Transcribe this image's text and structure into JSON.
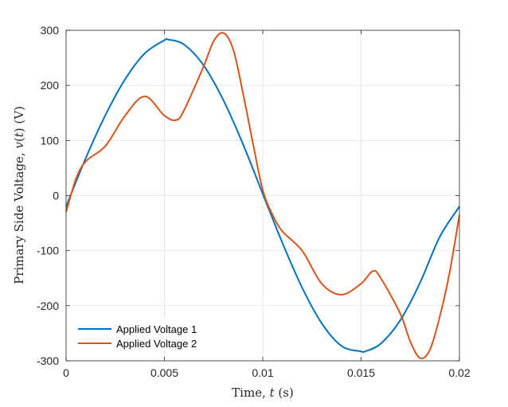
{
  "chart_data": {
    "type": "line",
    "xlabel": "Time, t (s)",
    "xlabel_parts": [
      "Time, ",
      "t",
      " (s)"
    ],
    "ylabel": "Primary Side Voltage, v(t) (V)",
    "ylabel_parts": [
      "Primary Side Voltage, ",
      "v",
      "(",
      "t",
      ") (V)"
    ],
    "xlim": [
      0,
      0.02
    ],
    "ylim": [
      -300,
      300
    ],
    "x_ticks": [
      0,
      0.005,
      0.01,
      0.015,
      0.02
    ],
    "x_tick_labels": [
      "0",
      "0.005",
      "0.01",
      "0.015",
      "0.02"
    ],
    "y_ticks": [
      -300,
      -200,
      -100,
      0,
      100,
      200,
      300
    ],
    "y_tick_labels": [
      "-300",
      "-200",
      "-100",
      "0",
      "100",
      "200",
      "300"
    ],
    "grid": true,
    "legend_position": "bottom-left",
    "series": [
      {
        "name": "Applied Voltage 1",
        "color": "#0072BD",
        "x": [
          0,
          0.001,
          0.002,
          0.003,
          0.004,
          0.005,
          0.0052,
          0.006,
          0.007,
          0.008,
          0.009,
          0.01,
          0.011,
          0.012,
          0.013,
          0.014,
          0.015,
          0.0152,
          0.016,
          0.017,
          0.018,
          0.019,
          0.02
        ],
        "y": [
          -20,
          68,
          146,
          211,
          258,
          282,
          283,
          274,
          236,
          173,
          93,
          3,
          -86,
          -167,
          -232,
          -273,
          -283,
          -283,
          -269,
          -226,
          -158,
          -75,
          -20
        ]
      },
      {
        "name": "Applied Voltage 2",
        "color": "#D95319",
        "x": [
          0,
          0.0005,
          0.001,
          0.002,
          0.003,
          0.004,
          0.005,
          0.0056,
          0.006,
          0.007,
          0.0075,
          0.008,
          0.0085,
          0.009,
          0.0095,
          0.01,
          0.0105,
          0.011,
          0.012,
          0.013,
          0.014,
          0.015,
          0.0156,
          0.016,
          0.017,
          0.0175,
          0.018,
          0.0185,
          0.019,
          0.0195,
          0.02
        ],
        "y": [
          -30,
          30,
          62,
          90,
          145,
          180,
          145,
          137,
          155,
          235,
          280,
          295,
          265,
          185,
          95,
          10,
          -35,
          -65,
          -100,
          -160,
          -180,
          -160,
          -137,
          -150,
          -215,
          -265,
          -295,
          -280,
          -220,
          -140,
          -35
        ]
      }
    ]
  }
}
